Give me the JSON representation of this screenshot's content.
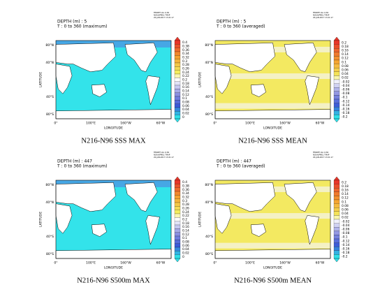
{
  "panels": [
    {
      "depth": "DEPTH (m) : 5",
      "time": "T : 0 to 360 (maximum)",
      "kind": "max",
      "title": "N216-N96 SSS MAX",
      "ferret": [
        "FERRET Ver. 6.82",
        "NOAA/PMEL TMAP",
        "20-JAN-2017 13:21:17"
      ],
      "colorbar": [
        "0.4",
        "0.38",
        "0.36",
        "0.34",
        "0.32",
        "0.3",
        "0.28",
        "0.26",
        "0.24",
        "0.22",
        "0.2",
        "0.18",
        "0.16",
        "0.14",
        "0.12",
        "0.1",
        "0.08",
        "0.06",
        "0.04",
        "0.02",
        "0"
      ]
    },
    {
      "depth": "DEPTH (m) : 5",
      "time": "T : 0 to 360 (averaged)",
      "kind": "mean",
      "title": "N216-N96 SSS MEAN",
      "ferret": [
        "FERRET Ver. 6.82",
        "NOAA/PMEL TMAP",
        "20-JAN-2017 13:21:17"
      ],
      "colorbar": [
        "0.2",
        "0.18",
        "0.16",
        "0.14",
        "0.12",
        "0.1",
        "0.08",
        "0.06",
        "0.04",
        "0.02",
        "-0.02",
        "-0.04",
        "-0.06",
        "-0.08",
        "-0.1",
        "-0.12",
        "-0.14",
        "-0.16",
        "-0.18",
        "-0.2"
      ]
    },
    {
      "depth": "DEPTH (m) : 447",
      "time": "T : 0 to 360 (maximum)",
      "kind": "max",
      "title": "N216-N96 S500m MAX",
      "ferret": [
        "FERRET Ver. 6.82",
        "NOAA/PMEL TMAP",
        "20-JAN-2017 13:21:17"
      ],
      "colorbar": [
        "0.4",
        "0.38",
        "0.36",
        "0.34",
        "0.32",
        "0.3",
        "0.28",
        "0.26",
        "0.24",
        "0.22",
        "0.2",
        "0.18",
        "0.16",
        "0.14",
        "0.12",
        "0.1",
        "0.08",
        "0.06",
        "0.04",
        "0.02",
        "0"
      ]
    },
    {
      "depth": "DEPTH (m) : 447",
      "time": "T : 0 to 360 (averaged)",
      "kind": "mean",
      "title": "N216-N96 S500m MEAN",
      "ferret": [
        "FERRET Ver. 6.82",
        "NOAA/PMEL TMAP",
        "20-JAN-2017 13:21:17"
      ],
      "colorbar": [
        "0.2",
        "0.18",
        "0.16",
        "0.14",
        "0.12",
        "0.1",
        "0.08",
        "0.06",
        "0.04",
        "0.02",
        "-0.02",
        "-0.04",
        "-0.06",
        "-0.08",
        "-0.1",
        "-0.12",
        "-0.14",
        "-0.16",
        "-0.18",
        "-0.2"
      ]
    }
  ],
  "axes": {
    "xlabel": "LONGITUDE",
    "ylabel": "LATITUDE",
    "xticks": [
      "0°",
      "100°E",
      "160°W",
      "60°W"
    ],
    "yticks": [
      "80°N",
      "40°N",
      "40°S",
      "80°S"
    ]
  }
}
